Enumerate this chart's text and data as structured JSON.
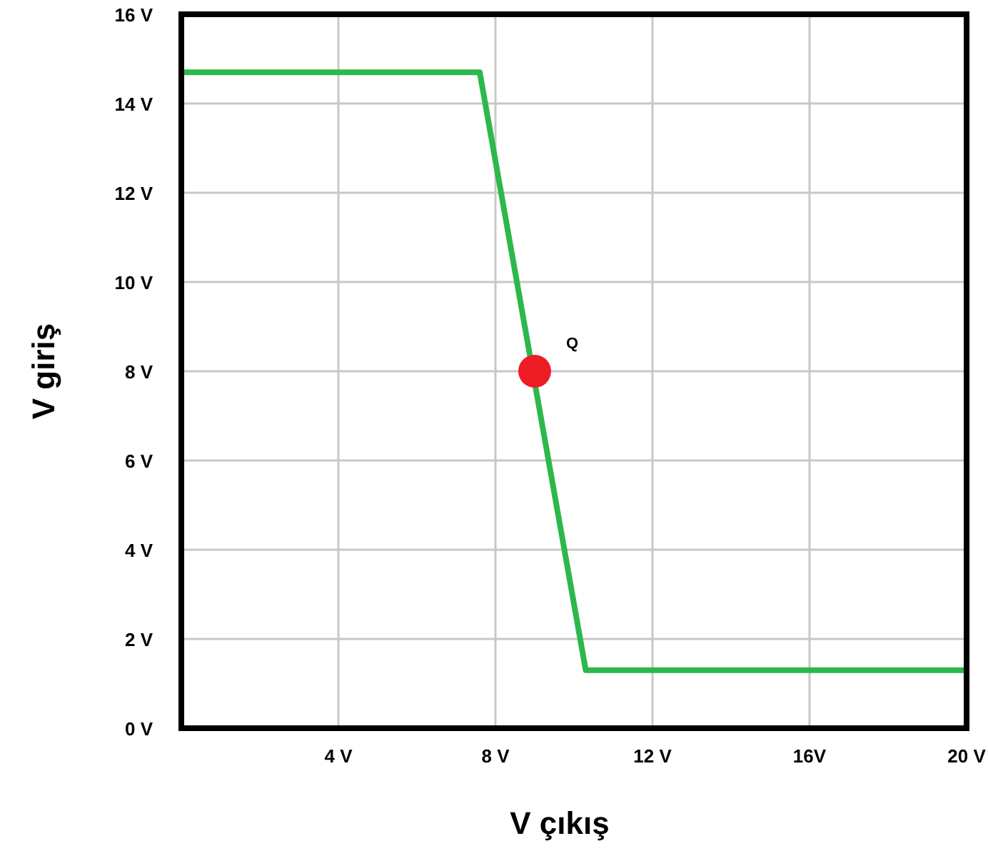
{
  "chart_data": {
    "type": "line",
    "xlabel": "V çıkış",
    "ylabel": "V giriş",
    "xlim": [
      0,
      20
    ],
    "ylim": [
      0,
      16
    ],
    "xticks": [
      {
        "value": 4,
        "label": "4 V"
      },
      {
        "value": 8,
        "label": "8 V"
      },
      {
        "value": 12,
        "label": "12 V"
      },
      {
        "value": 16,
        "label": "16V"
      },
      {
        "value": 20,
        "label": "20 V"
      }
    ],
    "yticks": [
      {
        "value": 0,
        "label": "0 V"
      },
      {
        "value": 2,
        "label": "2 V"
      },
      {
        "value": 4,
        "label": "4 V"
      },
      {
        "value": 6,
        "label": "6 V"
      },
      {
        "value": 8,
        "label": "8 V"
      },
      {
        "value": 10,
        "label": "10 V"
      },
      {
        "value": 12,
        "label": "12 V"
      },
      {
        "value": 14,
        "label": "14 V"
      },
      {
        "value": 16,
        "label": "16 V"
      }
    ],
    "grid": true,
    "series": [
      {
        "color": "#2db84b",
        "x": [
          0,
          7.6,
          10.3,
          20
        ],
        "values": [
          14.7,
          14.7,
          1.3,
          1.3
        ],
        "marker": "none"
      },
      {
        "type": "scatter",
        "color": "#ee1c24",
        "x": [
          9
        ],
        "values": [
          8
        ],
        "marker": "circle"
      }
    ],
    "annotations": [
      {
        "text": "Q",
        "x": 9,
        "y": 8
      }
    ]
  }
}
